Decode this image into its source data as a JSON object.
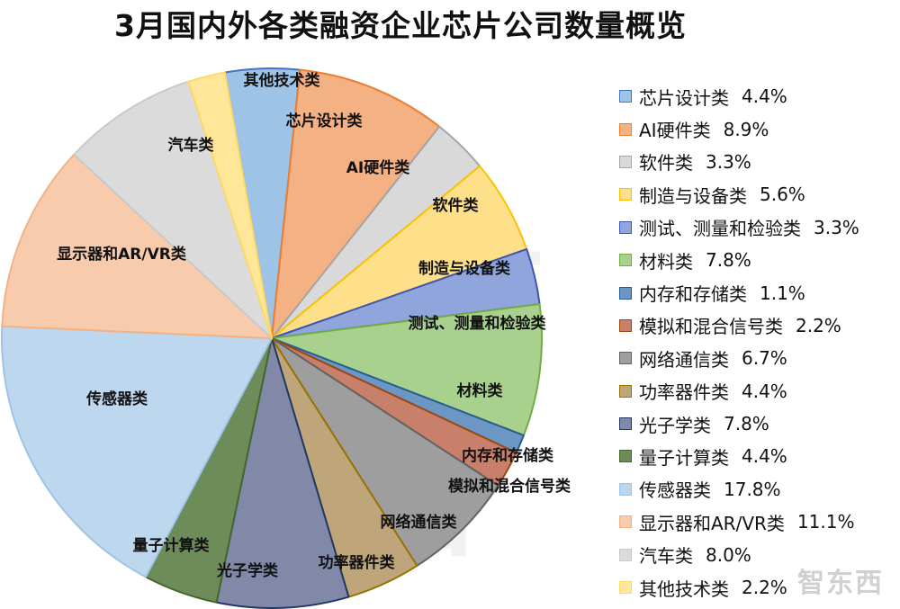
{
  "chart_data": {
    "type": "pie",
    "title": "3月国内外各类融资企业芯片公司数量概览",
    "legend_position": "right",
    "slices": [
      {
        "label": "芯片设计类",
        "value": 4.4,
        "pct_label": "4.4%",
        "color": "#9DC3E6",
        "stroke": "#4472C4"
      },
      {
        "label": "AI硬件类",
        "value": 8.9,
        "pct_label": "8.9%",
        "color": "#F4B183",
        "stroke": "#ED7D31"
      },
      {
        "label": "软件类",
        "value": 3.3,
        "pct_label": "3.3%",
        "color": "#D9D9D9",
        "stroke": "#A5A5A5"
      },
      {
        "label": "制造与设备类",
        "value": 5.6,
        "pct_label": "5.6%",
        "color": "#FFE08A",
        "stroke": "#FFC000"
      },
      {
        "label": "测试、测量和检验类",
        "value": 3.3,
        "pct_label": "3.3%",
        "color": "#8FA5DC",
        "stroke": "#4054B2"
      },
      {
        "label": "材料类",
        "value": 7.8,
        "pct_label": "7.8%",
        "color": "#A9D18E",
        "stroke": "#70AD47"
      },
      {
        "label": "内存和存储类",
        "value": 1.1,
        "pct_label": "1.1%",
        "color": "#6C96C4",
        "stroke": "#255E91"
      },
      {
        "label": "模拟和混合信号类",
        "value": 2.2,
        "pct_label": "2.2%",
        "color": "#C9806A",
        "stroke": "#9E480E"
      },
      {
        "label": "网络通信类",
        "value": 6.7,
        "pct_label": "6.7%",
        "color": "#9E9E9E",
        "stroke": "#636363"
      },
      {
        "label": "功率器件类",
        "value": 4.4,
        "pct_label": "4.4%",
        "color": "#BFA57A",
        "stroke": "#997300"
      },
      {
        "label": "光子学类",
        "value": 7.8,
        "pct_label": "7.8%",
        "color": "#8288A8",
        "stroke": "#203864"
      },
      {
        "label": "量子计算类",
        "value": 4.4,
        "pct_label": "4.4%",
        "color": "#6E8C5A",
        "stroke": "#43682B"
      },
      {
        "label": "传感器类",
        "value": 17.8,
        "pct_label": "17.8%",
        "color": "#BDD7EE",
        "stroke": "#9DC3E6"
      },
      {
        "label": "显示器和AR/VR类",
        "value": 11.1,
        "pct_label": "11.1%",
        "color": "#F8CBAD",
        "stroke": "#F4B183"
      },
      {
        "label": "汽车类",
        "value": 8.0,
        "pct_label": "8.0%",
        "color": "#DBDBDB",
        "stroke": "#C9C9C9"
      },
      {
        "label": "其他技术类",
        "value": 2.2,
        "pct_label": "2.2%",
        "color": "#FFE699",
        "stroke": "#FFD966"
      }
    ]
  },
  "watermark": {
    "center": "智东西",
    "corner": "智东西"
  }
}
